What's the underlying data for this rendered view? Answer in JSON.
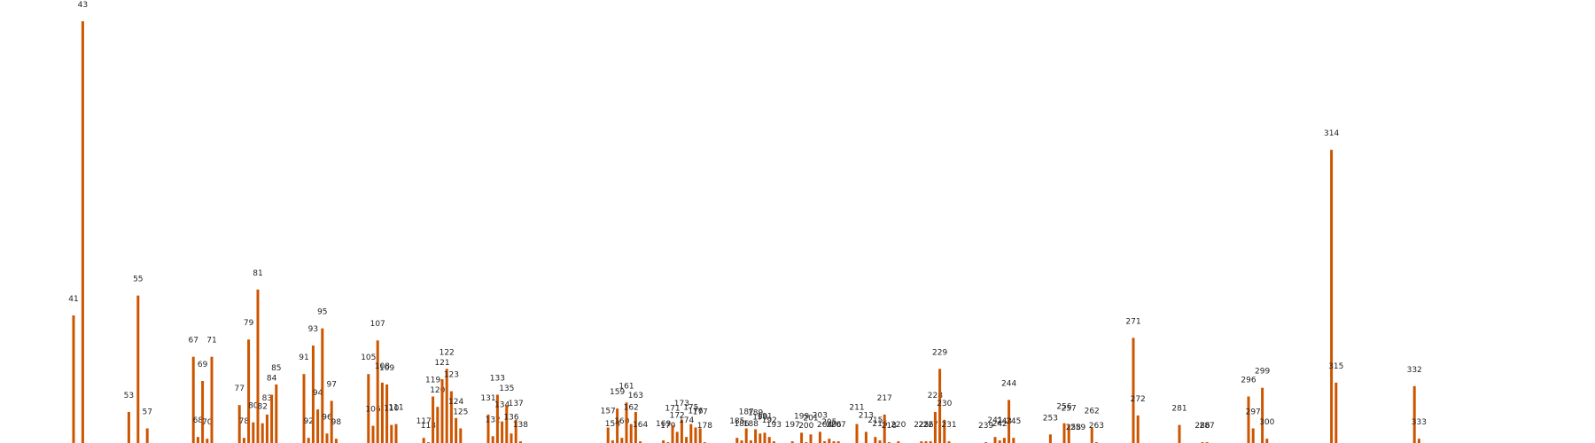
{
  "chart_data": {
    "type": "bar",
    "title": "",
    "xlabel": "",
    "ylabel": "",
    "grid": false,
    "color": "#cc5500",
    "bars": [
      {
        "label": "41",
        "x": 41,
        "value": 150
      },
      {
        "label": "43",
        "x": 43,
        "value": 491
      },
      {
        "label": "53",
        "x": 53,
        "value": 38
      },
      {
        "label": "55",
        "x": 55,
        "value": 173
      },
      {
        "label": "57",
        "x": 57,
        "value": 19
      },
      {
        "label": "67",
        "x": 67,
        "value": 102
      },
      {
        "label": "68",
        "x": 68,
        "value": 9
      },
      {
        "label": "69",
        "x": 69,
        "value": 74
      },
      {
        "label": "70",
        "x": 70,
        "value": 7
      },
      {
        "label": "71",
        "x": 71,
        "value": 102
      },
      {
        "label": "77",
        "x": 77,
        "value": 46
      },
      {
        "label": "78",
        "x": 78,
        "value": 8
      },
      {
        "label": "79",
        "x": 79,
        "value": 122
      },
      {
        "label": "80",
        "x": 80,
        "value": 26
      },
      {
        "label": "81",
        "x": 81,
        "value": 180
      },
      {
        "label": "82",
        "x": 82,
        "value": 25
      },
      {
        "label": "83",
        "x": 83,
        "value": 35
      },
      {
        "label": "84",
        "x": 84,
        "value": 58
      },
      {
        "label": "85",
        "x": 85,
        "value": 70
      },
      {
        "label": "91",
        "x": 91,
        "value": 82
      },
      {
        "label": "92",
        "x": 92,
        "value": 8
      },
      {
        "label": "93",
        "x": 93,
        "value": 115
      },
      {
        "label": "94",
        "x": 94,
        "value": 41
      },
      {
        "label": "95",
        "x": 95,
        "value": 135
      },
      {
        "label": "96",
        "x": 96,
        "value": 13
      },
      {
        "label": "97",
        "x": 97,
        "value": 51
      },
      {
        "label": "98",
        "x": 98,
        "value": 7
      },
      {
        "label": "105",
        "x": 105,
        "value": 82
      },
      {
        "label": "106",
        "x": 106,
        "value": 22
      },
      {
        "label": "107",
        "x": 107,
        "value": 121
      },
      {
        "label": "108",
        "x": 108,
        "value": 72
      },
      {
        "label": "109",
        "x": 109,
        "value": 70
      },
      {
        "label": "110",
        "x": 110,
        "value": 23
      },
      {
        "label": "111",
        "x": 111,
        "value": 24
      },
      {
        "label": "117",
        "x": 117,
        "value": 8
      },
      {
        "label": "118",
        "x": 118,
        "value": 3
      },
      {
        "label": "119",
        "x": 119,
        "value": 56
      },
      {
        "label": "120",
        "x": 120,
        "value": 44
      },
      {
        "label": "121",
        "x": 121,
        "value": 76
      },
      {
        "label": "122",
        "x": 122,
        "value": 88
      },
      {
        "label": "123",
        "x": 123,
        "value": 62
      },
      {
        "label": "124",
        "x": 124,
        "value": 31
      },
      {
        "label": "125",
        "x": 125,
        "value": 19
      },
      {
        "label": "131",
        "x": 131,
        "value": 35
      },
      {
        "label": "132",
        "x": 132,
        "value": 10
      },
      {
        "label": "133",
        "x": 133,
        "value": 58
      },
      {
        "label": "134",
        "x": 134,
        "value": 27
      },
      {
        "label": "135",
        "x": 135,
        "value": 46
      },
      {
        "label": "136",
        "x": 136,
        "value": 13
      },
      {
        "label": "137",
        "x": 137,
        "value": 29
      },
      {
        "label": "138",
        "x": 138,
        "value": 4
      },
      {
        "label": "157",
        "x": 157,
        "value": 20
      },
      {
        "label": "158",
        "x": 158,
        "value": 5
      },
      {
        "label": "159",
        "x": 159,
        "value": 42
      },
      {
        "label": "160",
        "x": 160,
        "value": 8
      },
      {
        "label": "161",
        "x": 161,
        "value": 49
      },
      {
        "label": "162",
        "x": 162,
        "value": 24
      },
      {
        "label": "163",
        "x": 163,
        "value": 38
      },
      {
        "label": "164",
        "x": 164,
        "value": 4
      },
      {
        "label": "169",
        "x": 169,
        "value": 5
      },
      {
        "label": "170",
        "x": 170,
        "value": 3
      },
      {
        "label": "171",
        "x": 171,
        "value": 23
      },
      {
        "label": "172",
        "x": 172,
        "value": 15
      },
      {
        "label": "173",
        "x": 173,
        "value": 29
      },
      {
        "label": "174",
        "x": 174,
        "value": 9
      },
      {
        "label": "175",
        "x": 175,
        "value": 24
      },
      {
        "label": "176",
        "x": 176,
        "value": 20
      },
      {
        "label": "177",
        "x": 177,
        "value": 19
      },
      {
        "label": "178",
        "x": 178,
        "value": 3
      },
      {
        "label": "185",
        "x": 185,
        "value": 8
      },
      {
        "label": "186",
        "x": 186,
        "value": 5
      },
      {
        "label": "187",
        "x": 187,
        "value": 19
      },
      {
        "label": "188",
        "x": 188,
        "value": 5
      },
      {
        "label": "189",
        "x": 189,
        "value": 18
      },
      {
        "label": "190",
        "x": 190,
        "value": 13
      },
      {
        "label": "191",
        "x": 191,
        "value": 14
      },
      {
        "label": "192",
        "x": 192,
        "value": 9
      },
      {
        "label": "193",
        "x": 193,
        "value": 4
      },
      {
        "label": "197",
        "x": 197,
        "value": 4
      },
      {
        "label": "199",
        "x": 199,
        "value": 14
      },
      {
        "label": "200",
        "x": 200,
        "value": 3
      },
      {
        "label": "201",
        "x": 201,
        "value": 12
      },
      {
        "label": "203",
        "x": 203,
        "value": 15
      },
      {
        "label": "204",
        "x": 204,
        "value": 4
      },
      {
        "label": "205",
        "x": 205,
        "value": 7
      },
      {
        "label": "206",
        "x": 206,
        "value": 4
      },
      {
        "label": "207",
        "x": 207,
        "value": 4
      },
      {
        "label": "211",
        "x": 211,
        "value": 24
      },
      {
        "label": "213",
        "x": 213,
        "value": 15
      },
      {
        "label": "215",
        "x": 215,
        "value": 9
      },
      {
        "label": "216",
        "x": 216,
        "value": 5
      },
      {
        "label": "217",
        "x": 217,
        "value": 35
      },
      {
        "label": "218",
        "x": 218,
        "value": 3
      },
      {
        "label": "220",
        "x": 220,
        "value": 4
      },
      {
        "label": "225",
        "x": 225,
        "value": 4
      },
      {
        "label": "226",
        "x": 226,
        "value": 4
      },
      {
        "label": "227",
        "x": 227,
        "value": 4
      },
      {
        "label": "228",
        "x": 228,
        "value": 38
      },
      {
        "label": "229",
        "x": 229,
        "value": 88
      },
      {
        "label": "230",
        "x": 230,
        "value": 29
      },
      {
        "label": "231",
        "x": 231,
        "value": 4
      },
      {
        "label": "239",
        "x": 239,
        "value": 3
      },
      {
        "label": "241",
        "x": 241,
        "value": 9
      },
      {
        "label": "242",
        "x": 242,
        "value": 5
      },
      {
        "label": "243",
        "x": 243,
        "value": 8
      },
      {
        "label": "244",
        "x": 244,
        "value": 52
      },
      {
        "label": "245",
        "x": 245,
        "value": 8
      },
      {
        "label": "253",
        "x": 253,
        "value": 12
      },
      {
        "label": "256",
        "x": 256,
        "value": 25
      },
      {
        "label": "257",
        "x": 257,
        "value": 23
      },
      {
        "label": "258",
        "x": 258,
        "value": 1
      },
      {
        "label": "259",
        "x": 259,
        "value": 1
      },
      {
        "label": "262",
        "x": 262,
        "value": 20
      },
      {
        "label": "263",
        "x": 263,
        "value": 3
      },
      {
        "label": "271",
        "x": 271,
        "value": 124
      },
      {
        "label": "272",
        "x": 272,
        "value": 34
      },
      {
        "label": "281",
        "x": 281,
        "value": 23
      },
      {
        "label": "286",
        "x": 286,
        "value": 3
      },
      {
        "label": "287",
        "x": 287,
        "value": 3
      },
      {
        "label": "296",
        "x": 296,
        "value": 56
      },
      {
        "label": "297",
        "x": 297,
        "value": 19
      },
      {
        "label": "299",
        "x": 299,
        "value": 66
      },
      {
        "label": "300",
        "x": 300,
        "value": 7
      },
      {
        "label": "314",
        "x": 314,
        "value": 342
      },
      {
        "label": "315",
        "x": 315,
        "value": 72
      },
      {
        "label": "332",
        "x": 332,
        "value": 68
      },
      {
        "label": "333",
        "x": 333,
        "value": 7
      }
    ]
  }
}
